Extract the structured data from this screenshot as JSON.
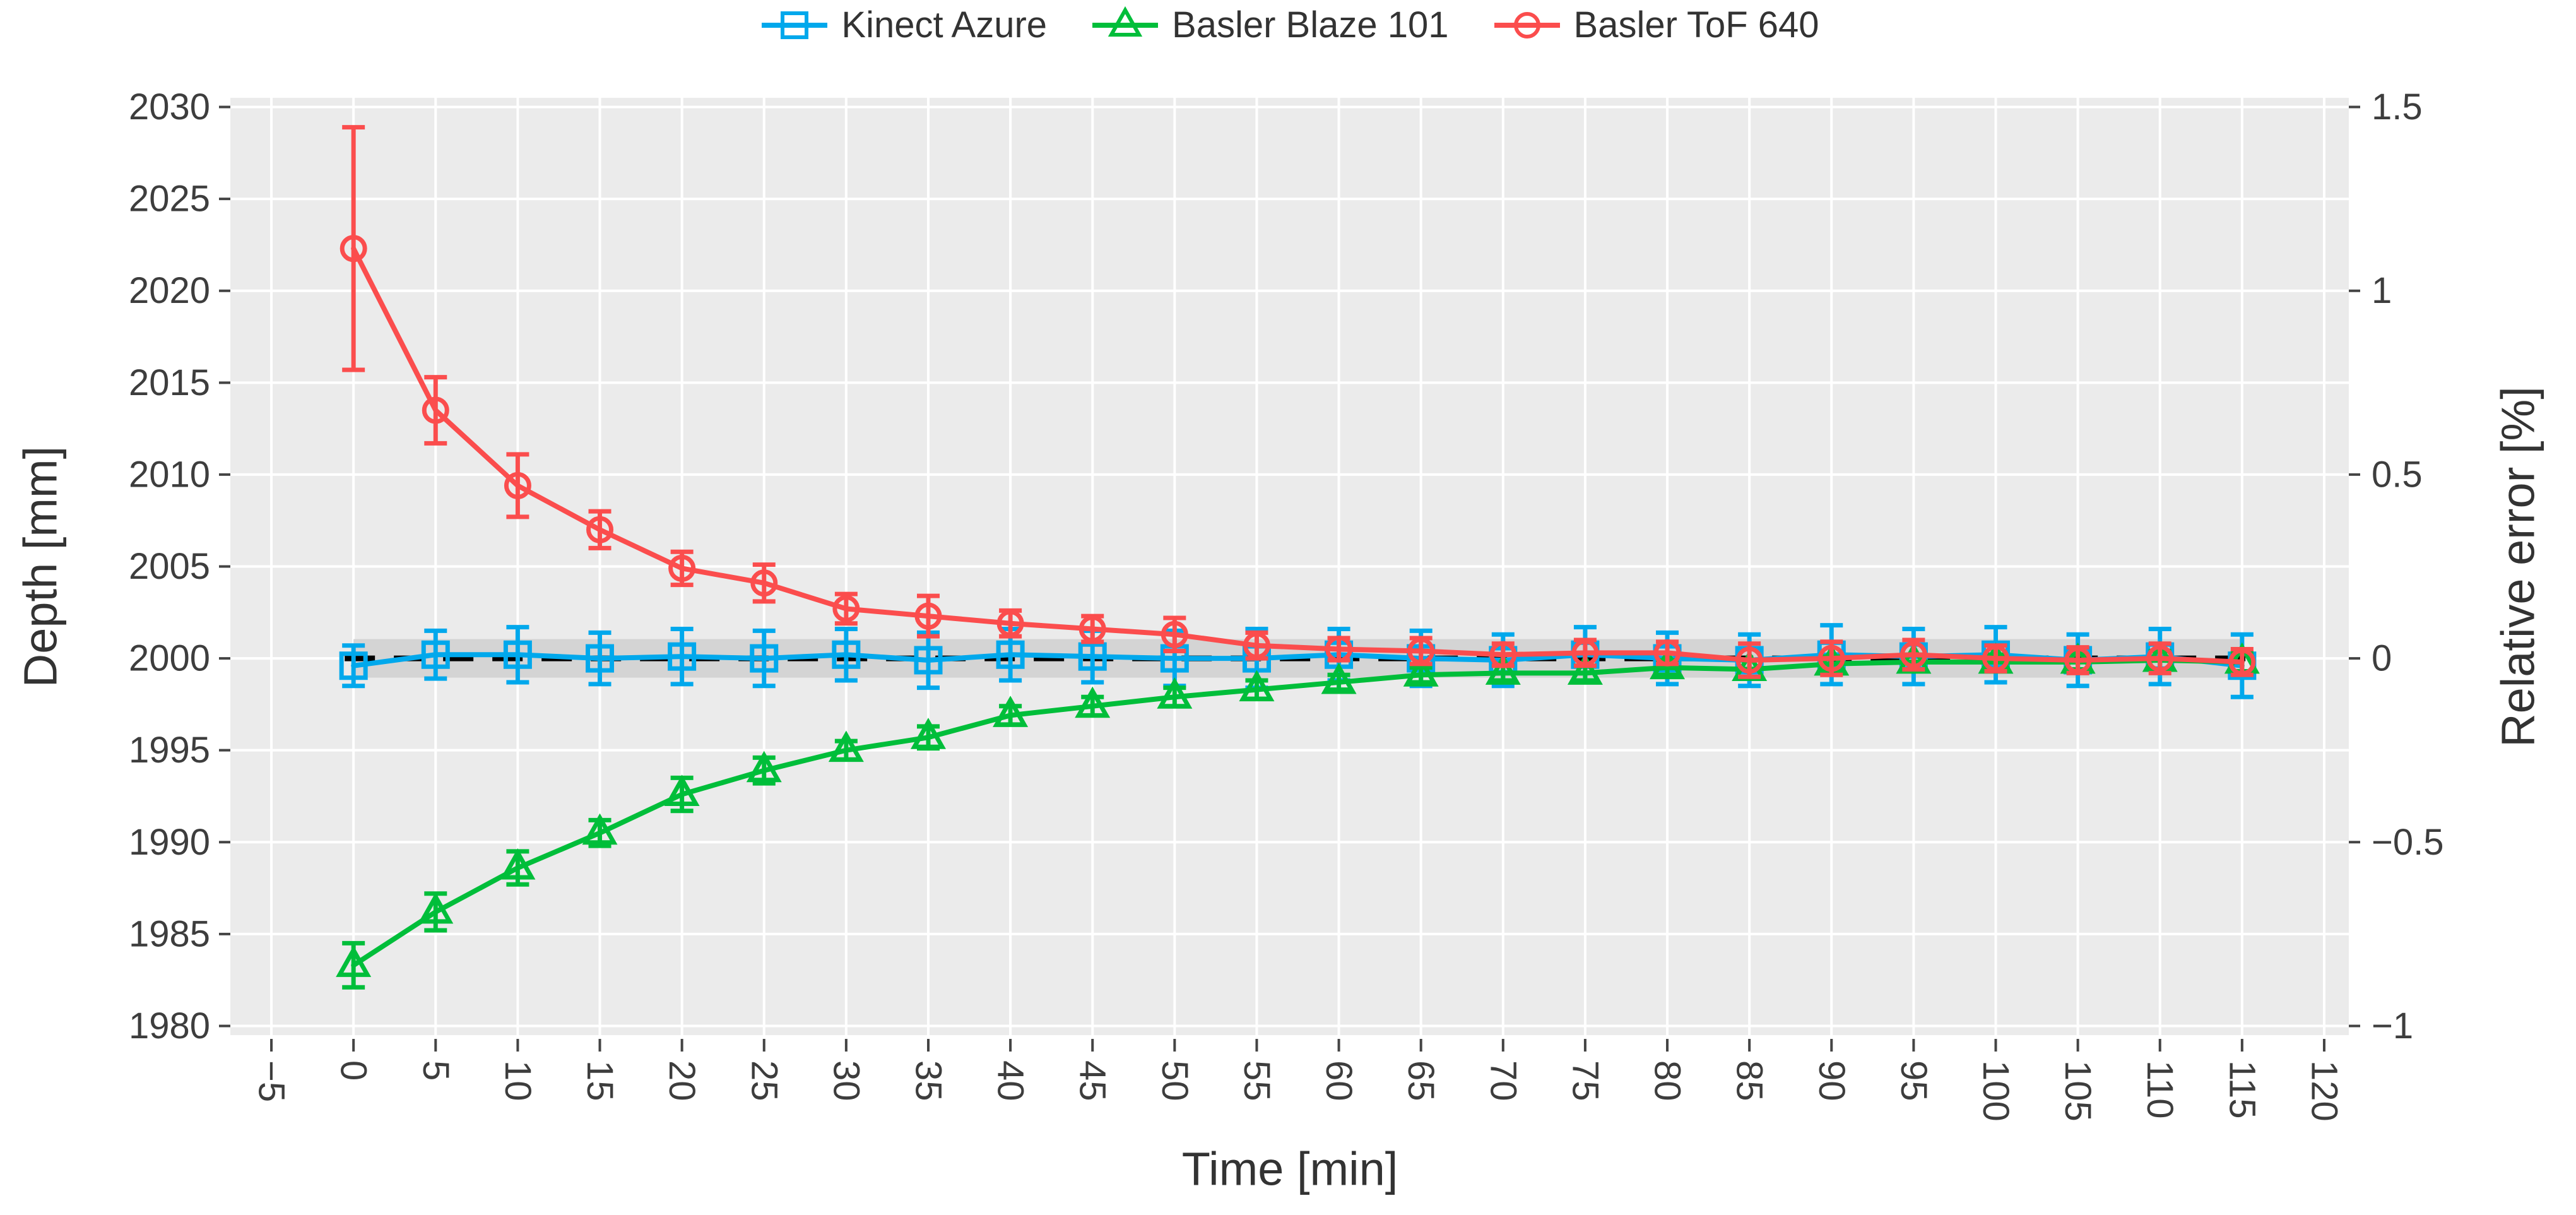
{
  "chart_data": {
    "type": "line",
    "title": "",
    "xlabel": "Time [min]",
    "ylabel_left": "Depth [mm]",
    "ylabel_right": "Relative error [%]",
    "plot_bg_color": "#EBEBEB",
    "grid": true,
    "grid_color": "#FFFFFF",
    "legend_position": "top-center",
    "x": [
      0,
      5,
      10,
      15,
      20,
      25,
      30,
      35,
      40,
      45,
      50,
      55,
      60,
      65,
      70,
      75,
      80,
      85,
      90,
      95,
      100,
      105,
      110,
      115
    ],
    "series": [
      {
        "name": "Kinect Azure",
        "color": "#00A8EC",
        "marker": "square",
        "values": [
          1999.6,
          2000.2,
          2000.2,
          2000.0,
          2000.1,
          2000.0,
          2000.2,
          1999.9,
          2000.2,
          2000.1,
          2000.0,
          2000.0,
          2000.2,
          2000.0,
          1999.9,
          2000.2,
          2000.0,
          1999.9,
          2000.2,
          2000.1,
          2000.2,
          1999.9,
          2000.1,
          1999.6
        ],
        "errors": [
          1.1,
          1.3,
          1.5,
          1.4,
          1.5,
          1.5,
          1.4,
          1.5,
          1.4,
          1.4,
          1.5,
          1.6,
          1.4,
          1.5,
          1.4,
          1.5,
          1.4,
          1.4,
          1.6,
          1.5,
          1.5,
          1.4,
          1.5,
          1.7
        ]
      },
      {
        "name": "Basler Blaze 101",
        "color": "#00BE3A",
        "marker": "triangle-up",
        "values": [
          1983.3,
          1986.2,
          1988.6,
          1990.5,
          1992.6,
          1993.9,
          1995.0,
          1995.7,
          1996.9,
          1997.4,
          1997.9,
          1998.3,
          1998.7,
          1999.1,
          1999.2,
          1999.2,
          1999.5,
          1999.4,
          1999.7,
          1999.8,
          1999.8,
          1999.8,
          1999.9,
          1999.8
        ],
        "errors": [
          1.2,
          1.0,
          0.9,
          0.7,
          0.9,
          0.7,
          0.5,
          0.6,
          0.5,
          0.5,
          0.5,
          0.5,
          0.4,
          0.4,
          0.4,
          0.4,
          0.4,
          0.5,
          0.4,
          0.4,
          0.4,
          0.4,
          0.5,
          0.5
        ]
      },
      {
        "name": "Basler ToF 640",
        "color": "#FB4D4D",
        "marker": "circle",
        "values": [
          2022.3,
          2013.5,
          2009.4,
          2007.0,
          2004.9,
          2004.1,
          2002.7,
          2002.3,
          2001.9,
          2001.6,
          2001.3,
          2000.7,
          2000.5,
          2000.4,
          2000.2,
          2000.3,
          2000.3,
          1999.9,
          2000.0,
          2000.2,
          2000.0,
          1999.9,
          2000.0,
          1999.8
        ],
        "errors": [
          6.6,
          1.8,
          1.7,
          1.0,
          0.9,
          1.0,
          0.8,
          1.1,
          0.7,
          0.7,
          0.9,
          0.7,
          0.6,
          0.7,
          0.6,
          0.7,
          0.6,
          0.9,
          0.9,
          0.8,
          0.7,
          0.7,
          0.8,
          0.7
        ]
      }
    ],
    "reference": {
      "depth_mm": 2000,
      "band_halfwidth_mm": 1.05,
      "band_color": "#D4D4D4",
      "line_color": "#000000",
      "line_style": "dashed",
      "span_x": [
        0,
        115
      ]
    },
    "axes": {
      "left": {
        "tick_values": [
          2030,
          2025,
          2020,
          2015,
          2010,
          2005,
          2000,
          1995,
          1990,
          1985,
          1980
        ],
        "tick_labels": [
          "2030",
          "2025",
          "2020",
          "2015",
          "2010",
          "2005",
          "2000",
          "1995",
          "1990",
          "1985",
          "1980"
        ],
        "lim": [
          1979.5,
          2030.5
        ]
      },
      "right": {
        "tick_values_mm": [
          2030,
          2020,
          2010,
          2000,
          1990,
          1980
        ],
        "tick_labels": [
          "1.5",
          "1",
          "0.5",
          "0",
          "−0.5",
          "−1"
        ],
        "percent_per_mm": 0.05
      },
      "bottom": {
        "tick_values": [
          -5,
          0,
          5,
          10,
          15,
          20,
          25,
          30,
          35,
          40,
          45,
          50,
          55,
          60,
          65,
          70,
          75,
          80,
          85,
          90,
          95,
          100,
          105,
          110,
          115,
          120
        ],
        "tick_labels": [
          "−5",
          "0",
          "5",
          "10",
          "15",
          "20",
          "25",
          "30",
          "35",
          "40",
          "45",
          "50",
          "55",
          "60",
          "65",
          "70",
          "75",
          "80",
          "85",
          "90",
          "95",
          "100",
          "105",
          "110",
          "115",
          "120"
        ],
        "lim": [
          -7.5,
          121.5
        ]
      }
    }
  }
}
